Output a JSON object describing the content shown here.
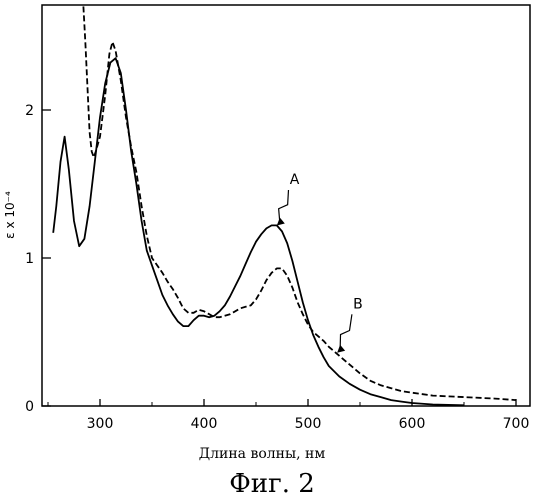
{
  "chart_data": {
    "type": "line",
    "title": "",
    "xlabel": "Длина волны, нм",
    "ylabel": "ε x 10⁻⁴",
    "xlim": [
      250,
      705
    ],
    "ylim": [
      0,
      2.7
    ],
    "xticks": [
      300,
      400,
      500,
      600,
      700
    ],
    "yticks": [
      0,
      1,
      2
    ],
    "grid": false,
    "series": [
      {
        "name": "A",
        "style": "solid",
        "points": [
          [
            255,
            1.17
          ],
          [
            258,
            1.35
          ],
          [
            262,
            1.65
          ],
          [
            266,
            1.82
          ],
          [
            270,
            1.6
          ],
          [
            275,
            1.25
          ],
          [
            280,
            1.08
          ],
          [
            285,
            1.13
          ],
          [
            290,
            1.35
          ],
          [
            295,
            1.65
          ],
          [
            300,
            1.95
          ],
          [
            305,
            2.18
          ],
          [
            310,
            2.32
          ],
          [
            315,
            2.35
          ],
          [
            320,
            2.25
          ],
          [
            325,
            2.0
          ],
          [
            330,
            1.72
          ],
          [
            335,
            1.5
          ],
          [
            340,
            1.25
          ],
          [
            345,
            1.05
          ],
          [
            350,
            0.95
          ],
          [
            355,
            0.85
          ],
          [
            360,
            0.75
          ],
          [
            365,
            0.68
          ],
          [
            370,
            0.62
          ],
          [
            375,
            0.57
          ],
          [
            380,
            0.54
          ],
          [
            385,
            0.54
          ],
          [
            390,
            0.58
          ],
          [
            395,
            0.61
          ],
          [
            400,
            0.61
          ],
          [
            405,
            0.6
          ],
          [
            410,
            0.61
          ],
          [
            415,
            0.64
          ],
          [
            420,
            0.68
          ],
          [
            425,
            0.74
          ],
          [
            430,
            0.81
          ],
          [
            435,
            0.88
          ],
          [
            440,
            0.96
          ],
          [
            445,
            1.04
          ],
          [
            450,
            1.11
          ],
          [
            455,
            1.16
          ],
          [
            460,
            1.2
          ],
          [
            465,
            1.22
          ],
          [
            470,
            1.22
          ],
          [
            475,
            1.18
          ],
          [
            480,
            1.1
          ],
          [
            485,
            0.98
          ],
          [
            490,
            0.84
          ],
          [
            495,
            0.7
          ],
          [
            500,
            0.58
          ],
          [
            505,
            0.48
          ],
          [
            510,
            0.4
          ],
          [
            515,
            0.33
          ],
          [
            520,
            0.27
          ],
          [
            530,
            0.2
          ],
          [
            540,
            0.15
          ],
          [
            550,
            0.11
          ],
          [
            560,
            0.08
          ],
          [
            570,
            0.06
          ],
          [
            580,
            0.04
          ],
          [
            590,
            0.03
          ],
          [
            600,
            0.02
          ],
          [
            620,
            0.01
          ],
          [
            650,
            0.005
          ]
        ]
      },
      {
        "name": "B",
        "style": "dashed",
        "points": [
          [
            284,
            2.7
          ],
          [
            286,
            2.45
          ],
          [
            288,
            2.15
          ],
          [
            290,
            1.85
          ],
          [
            292,
            1.72
          ],
          [
            294,
            1.68
          ],
          [
            296,
            1.72
          ],
          [
            300,
            1.82
          ],
          [
            305,
            2.1
          ],
          [
            309,
            2.38
          ],
          [
            312,
            2.46
          ],
          [
            315,
            2.4
          ],
          [
            320,
            2.2
          ],
          [
            325,
            1.95
          ],
          [
            330,
            1.75
          ],
          [
            335,
            1.58
          ],
          [
            340,
            1.35
          ],
          [
            345,
            1.15
          ],
          [
            350,
            1.0
          ],
          [
            355,
            0.95
          ],
          [
            360,
            0.9
          ],
          [
            365,
            0.84
          ],
          [
            370,
            0.79
          ],
          [
            375,
            0.73
          ],
          [
            380,
            0.66
          ],
          [
            385,
            0.63
          ],
          [
            390,
            0.63
          ],
          [
            395,
            0.65
          ],
          [
            400,
            0.64
          ],
          [
            405,
            0.62
          ],
          [
            410,
            0.6
          ],
          [
            415,
            0.6
          ],
          [
            420,
            0.61
          ],
          [
            425,
            0.62
          ],
          [
            430,
            0.64
          ],
          [
            435,
            0.66
          ],
          [
            440,
            0.67
          ],
          [
            445,
            0.68
          ],
          [
            450,
            0.72
          ],
          [
            455,
            0.78
          ],
          [
            460,
            0.85
          ],
          [
            465,
            0.9
          ],
          [
            470,
            0.93
          ],
          [
            475,
            0.93
          ],
          [
            480,
            0.88
          ],
          [
            485,
            0.8
          ],
          [
            490,
            0.7
          ],
          [
            495,
            0.62
          ],
          [
            500,
            0.55
          ],
          [
            505,
            0.5
          ],
          [
            510,
            0.47
          ],
          [
            515,
            0.44
          ],
          [
            520,
            0.4
          ],
          [
            525,
            0.37
          ],
          [
            530,
            0.34
          ],
          [
            540,
            0.28
          ],
          [
            550,
            0.22
          ],
          [
            560,
            0.17
          ],
          [
            570,
            0.14
          ],
          [
            580,
            0.12
          ],
          [
            590,
            0.1
          ],
          [
            600,
            0.09
          ],
          [
            620,
            0.07
          ],
          [
            650,
            0.06
          ],
          [
            680,
            0.05
          ],
          [
            700,
            0.04
          ]
        ]
      }
    ],
    "annotations": [
      {
        "text": "A",
        "x": 470,
        "y": 1.22,
        "label_x": 487,
        "label_y": 1.5
      },
      {
        "text": "B",
        "x": 528,
        "y": 0.36,
        "label_x": 548,
        "label_y": 0.66
      }
    ]
  },
  "caption": "Фиг. 2"
}
